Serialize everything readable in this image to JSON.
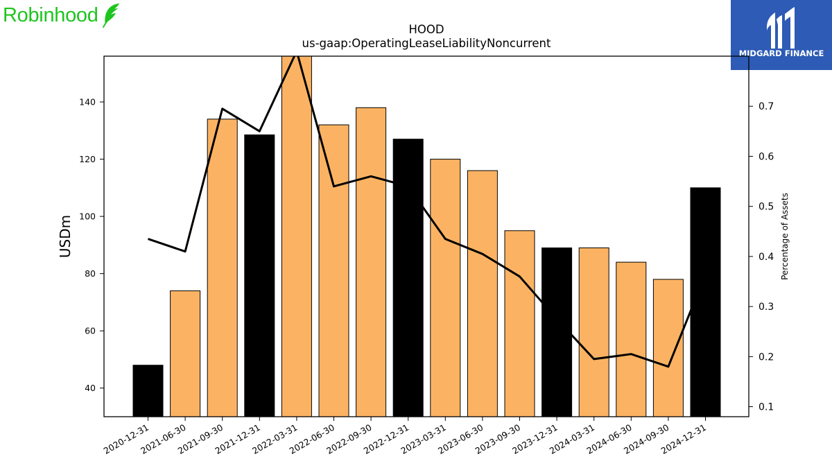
{
  "brand": {
    "name": "Robinhood",
    "icon": "feather-icon",
    "color": "#1ec51e"
  },
  "partner": {
    "name": "MIDGARD FINANCE",
    "icon": "midgard-logo-icon",
    "bg": "#2d5bb5"
  },
  "chart_data": {
    "type": "bar",
    "title": "HOOD",
    "subtitle": "us-gaap:OperatingLeaseLiabilityNoncurrent",
    "ylabel": "USDm",
    "y2label": "Percentage of Assets",
    "ylim": [
      30,
      156
    ],
    "y2lim": [
      0.08,
      0.8
    ],
    "yticks": [
      40,
      60,
      80,
      100,
      120,
      140
    ],
    "y2ticks": [
      0.1,
      0.2,
      0.3,
      0.4,
      0.5,
      0.6,
      0.7
    ],
    "categories": [
      "2020-12-31",
      "2021-06-30",
      "2021-09-30",
      "2021-12-31",
      "2022-03-31",
      "2022-06-30",
      "2022-09-30",
      "2022-12-31",
      "2023-03-31",
      "2023-06-30",
      "2023-09-30",
      "2023-12-31",
      "2024-03-31",
      "2024-06-30",
      "2024-09-30",
      "2024-12-31"
    ],
    "series": [
      {
        "type": "bar",
        "values": [
          48,
          74,
          134,
          128.5,
          157,
          132,
          138,
          127,
          120,
          116,
          95,
          89,
          89,
          84,
          78,
          110
        ]
      },
      {
        "type": "line",
        "axis": "right",
        "values": [
          0.435,
          0.41,
          0.695,
          0.65,
          0.81,
          0.54,
          0.56,
          0.54,
          0.435,
          0.405,
          0.36,
          0.275,
          0.195,
          0.205,
          0.18,
          0.365
        ]
      }
    ],
    "bar_colors": [
      "#000000",
      "#fbb363",
      "#fbb363",
      "#000000",
      "#fbb363",
      "#fbb363",
      "#fbb363",
      "#000000",
      "#fbb363",
      "#fbb363",
      "#fbb363",
      "#000000",
      "#fbb363",
      "#fbb363",
      "#fbb363",
      "#000000"
    ],
    "line_color": "#000000",
    "grid": false
  }
}
